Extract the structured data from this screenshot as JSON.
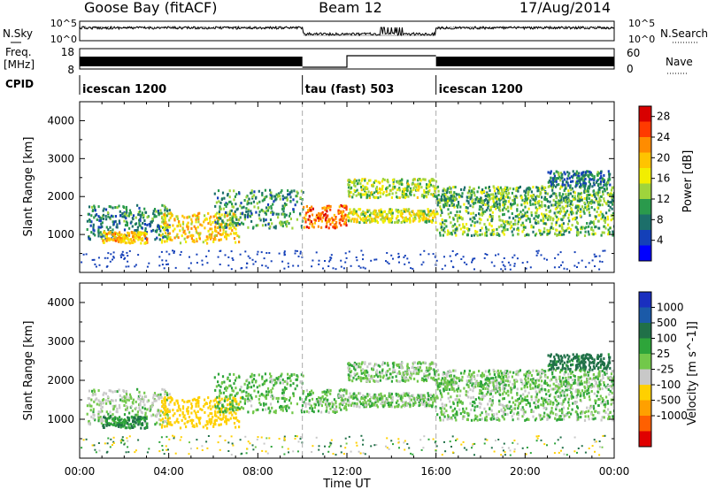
{
  "header": {
    "station": "Goose Bay (fitACF)",
    "beam": "Beam 12",
    "date": "17/Aug/2014"
  },
  "summary": {
    "nsky_label": "N.Sky",
    "nsky_ticks": [
      "10^5",
      "10^0"
    ],
    "nsearch_label": "N.Search",
    "nsearch_ticks": [
      "10^5",
      "10^0"
    ],
    "freq_label": "Freq.",
    "freq_unit": "[MHz]",
    "freq_ticks": [
      "18",
      "8"
    ],
    "nave_label": "Nave",
    "nave_ticks": [
      "60",
      "0"
    ],
    "cpid_label": "CPID",
    "cpid_segments": [
      {
        "label": "icescan 1200",
        "start_h": 0,
        "end_h": 10
      },
      {
        "label": "tau (fast) 503",
        "start_h": 10,
        "end_h": 16
      },
      {
        "label": "icescan 1200",
        "start_h": 16,
        "end_h": 24
      }
    ]
  },
  "axes": {
    "ylabel": "Slant Range [km]",
    "y_ticks": [
      "4000",
      "3000",
      "2000",
      "1000"
    ],
    "x_ticks": [
      "00:00",
      "04:00",
      "08:00",
      "12:00",
      "16:00",
      "20:00",
      "00:00"
    ],
    "xlabel": "Time UT"
  },
  "colorbars": {
    "power_label": "Power [dB]",
    "power_ticks": [
      "28",
      "24",
      "20",
      "16",
      "12",
      "8",
      "4"
    ],
    "power_colors": [
      "#d80000",
      "#ff3a00",
      "#ff8c00",
      "#ffc400",
      "#f2ee00",
      "#9fd43c",
      "#2a9a4c",
      "#1c6f6a",
      "#1440b8",
      "#0000ff"
    ],
    "velocity_label": "Velocity [m s^-1]",
    "velocity_ticks": [
      "1000",
      "500",
      "100",
      "25",
      "-25",
      "-100",
      "-500",
      "-1000"
    ],
    "velocity_colors": [
      "#1a2fbf",
      "#1b5aa8",
      "#207048",
      "#2ea53a",
      "#72c84a",
      "#c8c8c8",
      "#ffd000",
      "#ffa000",
      "#ff6000",
      "#e00000"
    ]
  },
  "chart_data": {
    "type": "heatmap",
    "x_range_hours": [
      0,
      24
    ],
    "y_range_km": [
      0,
      4500
    ],
    "mode_change_times_h": [
      10,
      16
    ],
    "power_range_db": [
      0,
      30
    ],
    "velocity_range_ms": [
      -1000,
      1000
    ],
    "scatter_bands": [
      {
        "t0": 0.3,
        "t1": 4.0,
        "r0": 900,
        "r1": 1800,
        "power_db": 8,
        "velocity": -25
      },
      {
        "t0": 1.0,
        "t1": 3.0,
        "r0": 800,
        "r1": 1100,
        "power_db": 20,
        "velocity": 100
      },
      {
        "t0": 3.6,
        "t1": 7.2,
        "r0": 800,
        "r1": 1600,
        "power_db": 18,
        "velocity": -200
      },
      {
        "t0": 6.0,
        "t1": 10.0,
        "r0": 1200,
        "r1": 2200,
        "power_db": 10,
        "velocity": 25
      },
      {
        "t0": 10.0,
        "t1": 12.0,
        "r0": 1200,
        "r1": 1800,
        "power_db": 24,
        "velocity": 0
      },
      {
        "t0": 12.0,
        "t1": 16.0,
        "r0": 2000,
        "r1": 2500,
        "power_db": 14,
        "velocity": 0
      },
      {
        "t0": 12.0,
        "t1": 16.0,
        "r0": 1350,
        "r1": 1700,
        "power_db": 16,
        "velocity": 0
      },
      {
        "t0": 16.0,
        "t1": 24.0,
        "r0": 1000,
        "r1": 1800,
        "power_db": 12,
        "velocity": 0
      },
      {
        "t0": 16.0,
        "t1": 24.0,
        "r0": 1800,
        "r1": 2300,
        "power_db": 11,
        "velocity": 0
      },
      {
        "t0": 21.0,
        "t1": 23.8,
        "r0": 2300,
        "r1": 2700,
        "power_db": 8,
        "velocity": 150
      }
    ]
  }
}
